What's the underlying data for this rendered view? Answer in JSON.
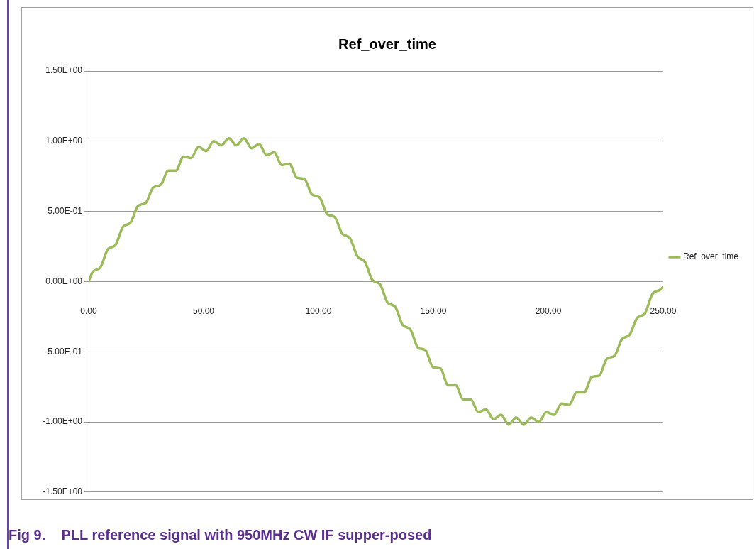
{
  "chart_data": {
    "type": "line",
    "title": "Ref_over_time",
    "x": [
      0,
      1.78,
      5.07,
      8.36,
      11.65,
      14.94,
      18.23,
      21.52,
      24.81,
      28.1,
      31.39,
      34.68,
      37.97,
      41.26,
      44.55,
      47.84,
      51.13,
      54.42,
      57.71,
      61,
      64.29,
      67.58,
      70.87,
      74.16,
      77.45,
      80.74,
      84.03,
      87.32,
      90.61,
      93.9,
      97.19,
      100.48,
      103.77,
      107.06,
      110.35,
      113.64,
      116.93,
      120.22,
      123.51,
      126.8,
      130.09,
      133.38,
      136.67,
      139.96,
      143.25,
      146.54,
      149.83,
      153.12,
      156.41,
      159.7,
      162.99,
      166.28,
      169.57,
      172.86,
      176.15,
      179.44,
      182.73,
      186.02,
      189.31,
      192.6,
      195.89,
      199.18,
      202.47,
      205.76,
      209.05,
      212.34,
      215.63,
      218.92,
      222.21,
      225.5,
      228.79,
      232.08,
      235.37,
      238.66,
      241.95,
      245.24,
      248.53,
      250
    ],
    "series": [
      {
        "name": "Ref_over_time",
        "color": "#9bbb59",
        "values": [
          0,
          0.07,
          0.1,
          0.23,
          0.26,
          0.39,
          0.42,
          0.54,
          0.56,
          0.67,
          0.69,
          0.79,
          0.79,
          0.89,
          0.88,
          0.96,
          0.93,
          1.0,
          0.97,
          1.02,
          0.97,
          1.02,
          0.95,
          0.98,
          0.9,
          0.92,
          0.83,
          0.84,
          0.74,
          0.73,
          0.62,
          0.6,
          0.48,
          0.46,
          0.34,
          0.31,
          0.18,
          0.14,
          0.01,
          -0.02,
          -0.15,
          -0.18,
          -0.31,
          -0.34,
          -0.47,
          -0.49,
          -0.61,
          -0.62,
          -0.74,
          -0.74,
          -0.84,
          -0.84,
          -0.93,
          -0.91,
          -0.98,
          -0.95,
          -1.02,
          -0.97,
          -1.02,
          -0.97,
          -1.0,
          -0.93,
          -0.95,
          -0.87,
          -0.88,
          -0.79,
          -0.79,
          -0.68,
          -0.67,
          -0.55,
          -0.53,
          -0.41,
          -0.38,
          -0.26,
          -0.23,
          -0.09,
          -0.06,
          -0.04
        ]
      }
    ],
    "xlim": [
      0,
      250
    ],
    "xticks": [
      {
        "value": 0,
        "label": "0.00"
      },
      {
        "value": 50,
        "label": "50.00"
      },
      {
        "value": 100,
        "label": "100.00"
      },
      {
        "value": 150,
        "label": "150.00"
      },
      {
        "value": 200,
        "label": "200.00"
      },
      {
        "value": 250,
        "label": "250.00"
      }
    ],
    "ylim": [
      -1.5,
      1.5
    ],
    "yticks": [
      {
        "value": -1.5,
        "label": "-1.50E+00"
      },
      {
        "value": -1,
        "label": "-1.00E+00"
      },
      {
        "value": -0.5,
        "label": "-5.00E-01"
      },
      {
        "value": 0,
        "label": "0.00E+00"
      },
      {
        "value": 0.5,
        "label": "5.00E-01"
      },
      {
        "value": 1,
        "label": "1.00E+00"
      },
      {
        "value": 1.5,
        "label": "1.50E+00"
      }
    ],
    "grid": "y",
    "legend": "right",
    "marker": "none",
    "line_style": "solid",
    "annotations": [
      "Fig 9.    PLL reference signal with 950MHz CW IF supper-posed"
    ]
  }
}
